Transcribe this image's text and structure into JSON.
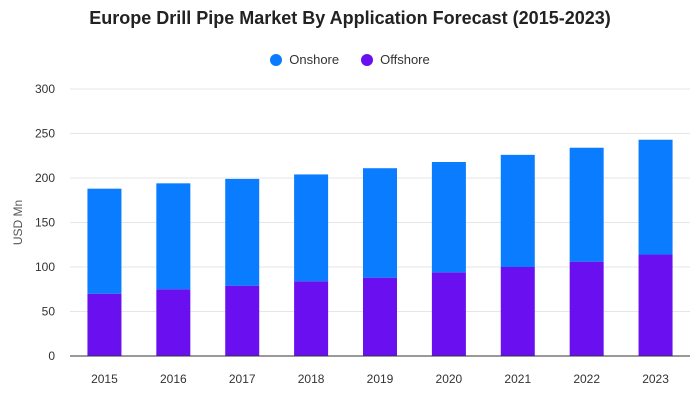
{
  "chart_data": {
    "type": "bar",
    "stacked": true,
    "title": "Europe Drill Pipe Market By Application Forecast (2015-2023)",
    "xlabel": "",
    "ylabel": "USD Mn",
    "categories": [
      "2015",
      "2016",
      "2017",
      "2018",
      "2019",
      "2020",
      "2021",
      "2022",
      "2023"
    ],
    "series": [
      {
        "name": "Offshore",
        "color": "#6a0ff0",
        "values": [
          70,
          75,
          79,
          84,
          88,
          94,
          100,
          106,
          114
        ]
      },
      {
        "name": "Onshore",
        "color": "#0a7cff",
        "values": [
          118,
          119,
          120,
          120,
          123,
          124,
          126,
          128,
          129
        ]
      }
    ],
    "ylim": [
      0,
      300
    ],
    "yticks": [
      0,
      50,
      100,
      150,
      200,
      250,
      300
    ],
    "grid": true,
    "legend_position": "top-center"
  },
  "legend": [
    {
      "name": "Onshore",
      "color": "#0a7cff"
    },
    {
      "name": "Offshore",
      "color": "#6a0ff0"
    }
  ]
}
